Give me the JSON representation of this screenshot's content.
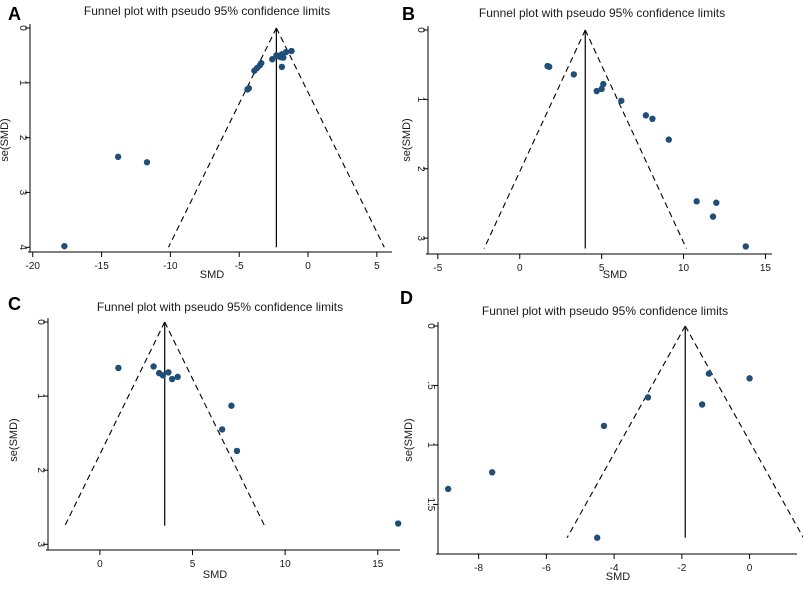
{
  "figure": {
    "description_labels": [
      "A",
      "B",
      "C",
      "D"
    ]
  },
  "chart_data": [
    {
      "panel": "A",
      "type": "scatter",
      "title": "Funnel plot with pseudo 95% confidence limits",
      "xlabel": "SMD",
      "ylabel": "se(SMD)",
      "xlim": [
        -20.2,
        6.1
      ],
      "ylim": [
        0,
        4.05
      ],
      "y_reversed": true,
      "xticks": [
        -20,
        -15,
        -10,
        -5,
        0,
        5
      ],
      "xtick_labels": [
        "-20",
        "-15",
        "-10",
        "-5",
        "0",
        "5"
      ],
      "yticks": [
        0,
        1,
        2,
        3,
        4
      ],
      "ytick_labels": [
        "0",
        "1",
        "2",
        "3",
        "4"
      ],
      "pooled_smd": -2.3,
      "funnel_se_max": 4.0,
      "x": [
        -17.7,
        -13.8,
        -11.7,
        -4.4,
        -4.3,
        -3.9,
        -3.7,
        -3.5,
        -3.4,
        -2.6,
        -2.3,
        -2.2,
        -2.0,
        -1.9,
        -1.8,
        -1.6,
        -1.2,
        -1.9
      ],
      "y": [
        3.98,
        2.35,
        2.45,
        1.12,
        1.1,
        0.78,
        0.73,
        0.68,
        0.64,
        0.57,
        0.5,
        0.51,
        0.53,
        0.48,
        0.54,
        0.44,
        0.42,
        0.71
      ]
    },
    {
      "panel": "B",
      "type": "scatter",
      "title": "Funnel plot with pseudo 95% confidence limits",
      "xlabel": "SMD",
      "ylabel": "se(SMD)",
      "xlim": [
        -5.6,
        15.4
      ],
      "ylim": [
        0,
        3.2
      ],
      "y_reversed": true,
      "xticks": [
        -5,
        0,
        5,
        10,
        15
      ],
      "xtick_labels": [
        "-5",
        "0",
        "5",
        "10",
        "15"
      ],
      "yticks": [
        0,
        1,
        2,
        3
      ],
      "ytick_labels": [
        "0",
        "1",
        "2",
        "3"
      ],
      "pooled_smd": 4.0,
      "funnel_se_max": 3.15,
      "x": [
        1.7,
        1.8,
        3.3,
        4.7,
        5.0,
        5.1,
        6.2,
        7.7,
        8.1,
        9.1,
        10.8,
        11.8,
        12.0,
        13.8
      ],
      "y": [
        0.52,
        0.53,
        0.64,
        0.88,
        0.85,
        0.78,
        1.02,
        1.23,
        1.28,
        1.58,
        2.47,
        2.69,
        2.49,
        3.12
      ]
    },
    {
      "panel": "C",
      "type": "scatter",
      "title": "Funnel plot with pseudo 95% confidence limits",
      "xlabel": "SMD",
      "ylabel": "se(SMD)",
      "xlim": [
        -2.8,
        16.2
      ],
      "ylim": [
        0,
        3.05
      ],
      "y_reversed": true,
      "xticks": [
        0,
        5,
        10,
        15
      ],
      "xtick_labels": [
        "0",
        "5",
        "10",
        "15"
      ],
      "yticks": [
        0,
        1,
        2,
        3
      ],
      "ytick_labels": [
        "0",
        "1",
        "2",
        "3"
      ],
      "pooled_smd": 3.5,
      "funnel_se_max": 2.75,
      "x": [
        1.0,
        2.9,
        3.2,
        3.4,
        3.7,
        3.9,
        4.2,
        6.6,
        7.1,
        7.4,
        16.1
      ],
      "y": [
        0.62,
        0.6,
        0.69,
        0.72,
        0.68,
        0.77,
        0.74,
        1.45,
        1.13,
        1.74,
        2.72
      ],
      "note": "se(SMD) tick at 0 is drawn near the top; the last point sits at x≈16.1"
    },
    {
      "panel": "D",
      "type": "scatter",
      "title": "Funnel plot with pseudo 95% confidence limits",
      "xlabel": "SMD",
      "ylabel": "se(SMD)",
      "xlim": [
        -9.2,
        1.4
      ],
      "ylim": [
        0,
        1.9
      ],
      "y_reversed": true,
      "xticks": [
        -8,
        -6,
        -4,
        -2,
        0
      ],
      "xtick_labels": [
        "-8",
        "-6",
        "-4",
        "-2",
        "0"
      ],
      "yticks": [
        0,
        0.5,
        1,
        1.5
      ],
      "ytick_labels": [
        "0",
        ".5",
        "1",
        "1.5"
      ],
      "pooled_smd": -1.9,
      "funnel_se_max": 1.78,
      "x": [
        -8.9,
        -7.6,
        -4.5,
        -4.3,
        -3.0,
        -1.4,
        -1.2,
        0.0
      ],
      "y": [
        1.37,
        1.23,
        1.78,
        0.84,
        0.6,
        0.66,
        0.4,
        0.44
      ]
    }
  ]
}
